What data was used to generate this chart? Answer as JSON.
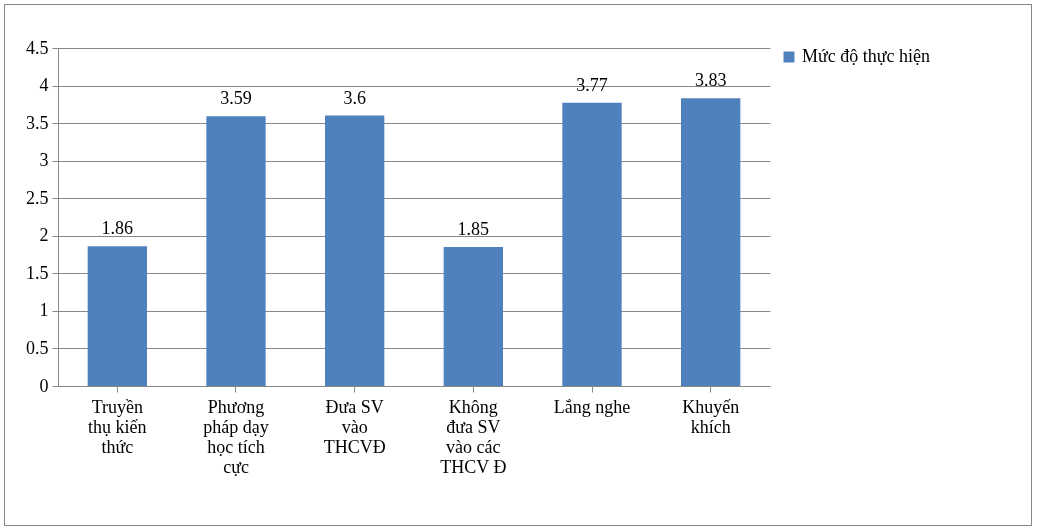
{
  "chart_data": {
    "type": "bar",
    "categories": [
      "Truyền thụ kiến thức",
      "Phương pháp dạy học tích cực",
      "Đưa SV vào THCVĐ",
      "Không đưa SV vào các THCV Đ",
      "Lắng nghe",
      "Khuyến khích"
    ],
    "series": [
      {
        "name": "Mức độ thực hiện",
        "color": "#4f81bd",
        "values": [
          1.86,
          3.59,
          3.6,
          1.85,
          3.77,
          3.83
        ]
      }
    ],
    "ylim": [
      0,
      4.5
    ],
    "yticks": [
      0,
      0.5,
      1,
      1.5,
      2,
      2.5,
      3,
      3.5,
      4,
      4.5
    ],
    "grid": "y",
    "legend": "right",
    "data_labels": true
  }
}
